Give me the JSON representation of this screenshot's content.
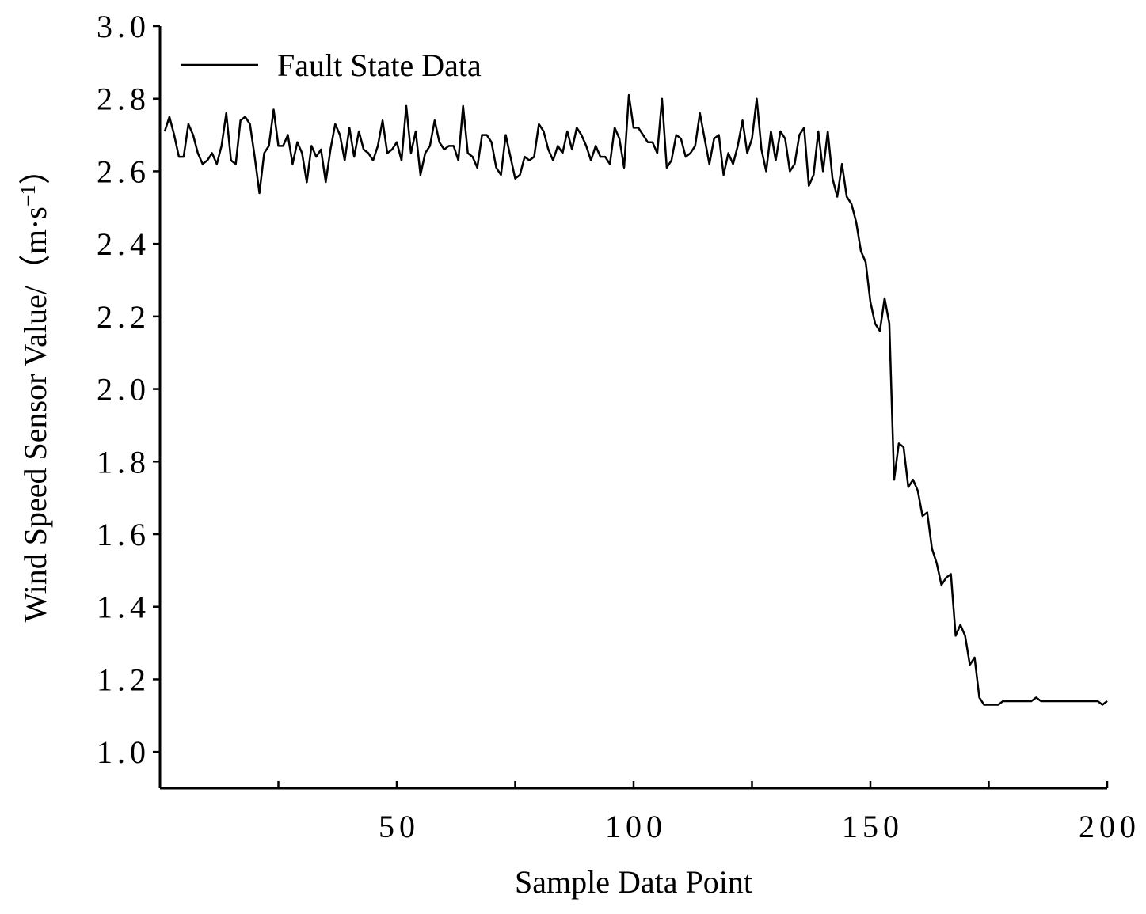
{
  "chart_data": {
    "type": "line",
    "xlabel": "Sample Data Point",
    "ylabel": {
      "text": "Wind Speed Sensor Value/（m·s",
      "sup": "−1",
      "end": "）"
    },
    "xlim": [
      0,
      200
    ],
    "ylim": [
      0.9,
      3.0
    ],
    "xticks": [
      50,
      100,
      150,
      200
    ],
    "xminorticks": [
      25,
      75,
      125,
      175
    ],
    "yticks": [
      {
        "value": 1.0,
        "label": "1.0"
      },
      1.2,
      1.4,
      1.6,
      1.8,
      {
        "value": 2.0,
        "label": "2.0"
      },
      2.2,
      2.4,
      2.6,
      2.8,
      {
        "value": 3.0,
        "label": "3.0"
      }
    ],
    "legend": "upper left",
    "x": [
      1,
      2,
      3,
      4,
      5,
      6,
      7,
      8,
      9,
      10,
      11,
      12,
      13,
      14,
      15,
      16,
      17,
      18,
      19,
      20,
      21,
      22,
      23,
      24,
      25,
      26,
      27,
      28,
      29,
      30,
      31,
      32,
      33,
      34,
      35,
      36,
      37,
      38,
      39,
      40,
      41,
      42,
      43,
      44,
      45,
      46,
      47,
      48,
      49,
      50,
      51,
      52,
      53,
      54,
      55,
      56,
      57,
      58,
      59,
      60,
      61,
      62,
      63,
      64,
      65,
      66,
      67,
      68,
      69,
      70,
      71,
      72,
      73,
      74,
      75,
      76,
      77,
      78,
      79,
      80,
      81,
      82,
      83,
      84,
      85,
      86,
      87,
      88,
      89,
      90,
      91,
      92,
      93,
      94,
      95,
      96,
      97,
      98,
      99,
      100,
      101,
      102,
      103,
      104,
      105,
      106,
      107,
      108,
      109,
      110,
      111,
      112,
      113,
      114,
      115,
      116,
      117,
      118,
      119,
      120,
      121,
      122,
      123,
      124,
      125,
      126,
      127,
      128,
      129,
      130,
      131,
      132,
      133,
      134,
      135,
      136,
      137,
      138,
      139,
      140,
      141,
      142,
      143,
      144,
      145,
      146,
      147,
      148,
      149,
      150,
      151,
      152,
      153,
      154,
      155,
      156,
      157,
      158,
      159,
      160,
      161,
      162,
      163,
      164,
      165,
      166,
      167,
      168,
      169,
      170,
      171,
      172,
      173,
      174,
      175,
      176,
      177,
      178,
      179,
      180,
      181,
      182,
      183,
      184,
      185,
      186,
      187,
      188,
      189,
      190,
      191,
      192,
      193,
      194,
      195,
      196,
      197,
      198,
      199,
      200
    ],
    "series": [
      {
        "name": "Fault State Data",
        "color": "#000000",
        "values": [
          2.71,
          2.75,
          2.7,
          2.64,
          2.64,
          2.73,
          2.7,
          2.65,
          2.62,
          2.63,
          2.65,
          2.62,
          2.67,
          2.76,
          2.63,
          2.62,
          2.74,
          2.75,
          2.73,
          2.64,
          2.54,
          2.65,
          2.67,
          2.77,
          2.67,
          2.67,
          2.7,
          2.62,
          2.68,
          2.65,
          2.57,
          2.67,
          2.64,
          2.66,
          2.57,
          2.66,
          2.73,
          2.7,
          2.63,
          2.72,
          2.64,
          2.71,
          2.66,
          2.65,
          2.63,
          2.67,
          2.74,
          2.65,
          2.66,
          2.68,
          2.63,
          2.78,
          2.65,
          2.71,
          2.59,
          2.65,
          2.67,
          2.74,
          2.68,
          2.66,
          2.67,
          2.67,
          2.63,
          2.78,
          2.65,
          2.64,
          2.61,
          2.7,
          2.7,
          2.68,
          2.61,
          2.59,
          2.7,
          2.64,
          2.58,
          2.59,
          2.64,
          2.63,
          2.64,
          2.73,
          2.71,
          2.66,
          2.63,
          2.67,
          2.65,
          2.71,
          2.66,
          2.72,
          2.7,
          2.67,
          2.63,
          2.67,
          2.64,
          2.64,
          2.62,
          2.72,
          2.69,
          2.61,
          2.81,
          2.72,
          2.72,
          2.7,
          2.68,
          2.68,
          2.65,
          2.8,
          2.61,
          2.63,
          2.7,
          2.69,
          2.64,
          2.65,
          2.67,
          2.76,
          2.69,
          2.62,
          2.69,
          2.7,
          2.59,
          2.65,
          2.62,
          2.67,
          2.74,
          2.65,
          2.69,
          2.8,
          2.66,
          2.6,
          2.71,
          2.63,
          2.71,
          2.69,
          2.6,
          2.62,
          2.7,
          2.72,
          2.56,
          2.59,
          2.71,
          2.6,
          2.71,
          2.58,
          2.53,
          2.62,
          2.53,
          2.51,
          2.46,
          2.38,
          2.35,
          2.24,
          2.18,
          2.16,
          2.25,
          2.18,
          1.75,
          1.85,
          1.84,
          1.73,
          1.75,
          1.72,
          1.65,
          1.66,
          1.56,
          1.52,
          1.46,
          1.48,
          1.49,
          1.32,
          1.35,
          1.32,
          1.24,
          1.26,
          1.15,
          1.13,
          1.13,
          1.13,
          1.13,
          1.14,
          1.14,
          1.14,
          1.14,
          1.14,
          1.14,
          1.14,
          1.15,
          1.14,
          1.14,
          1.14,
          1.14,
          1.14,
          1.14,
          1.14,
          1.14,
          1.14,
          1.14,
          1.14,
          1.14,
          1.14,
          1.13,
          1.14
        ]
      }
    ]
  }
}
